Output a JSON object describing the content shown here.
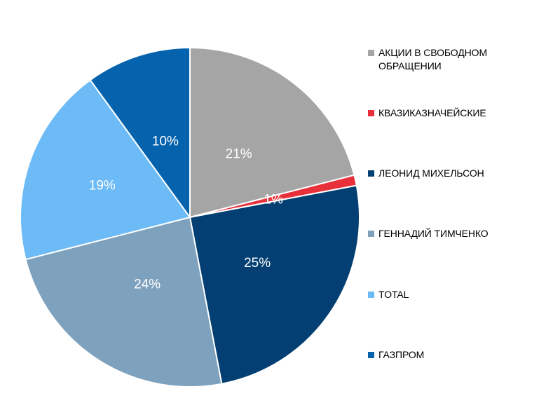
{
  "chart_data": {
    "type": "pie",
    "slices": [
      {
        "name": "АКЦИИ В СВОБОДНОМ ОБРАЩЕНИИ",
        "value": 21,
        "label": "21%",
        "color": "#a5a5a5"
      },
      {
        "name": "КВАЗИКАЗНАЧЕЙСКИЕ",
        "value": 1,
        "label": "1%",
        "color": "#e8303a"
      },
      {
        "name": "ЛЕОНИД МИХЕЛЬСОН",
        "value": 25,
        "label": "25%",
        "color": "#033f72"
      },
      {
        "name": "ГЕННАДИЙ ТИМЧЕНКО",
        "value": 24,
        "label": "24%",
        "color": "#7ea1bd"
      },
      {
        "name": "TOTAL",
        "value": 19,
        "label": "19%",
        "color": "#6cbbf7"
      },
      {
        "name": "ГАЗПРОМ",
        "value": 10,
        "label": "10%",
        "color": "#0563ae"
      }
    ],
    "start_angle": "12 o'clock",
    "direction": "clockwise",
    "legend_position": "right"
  }
}
